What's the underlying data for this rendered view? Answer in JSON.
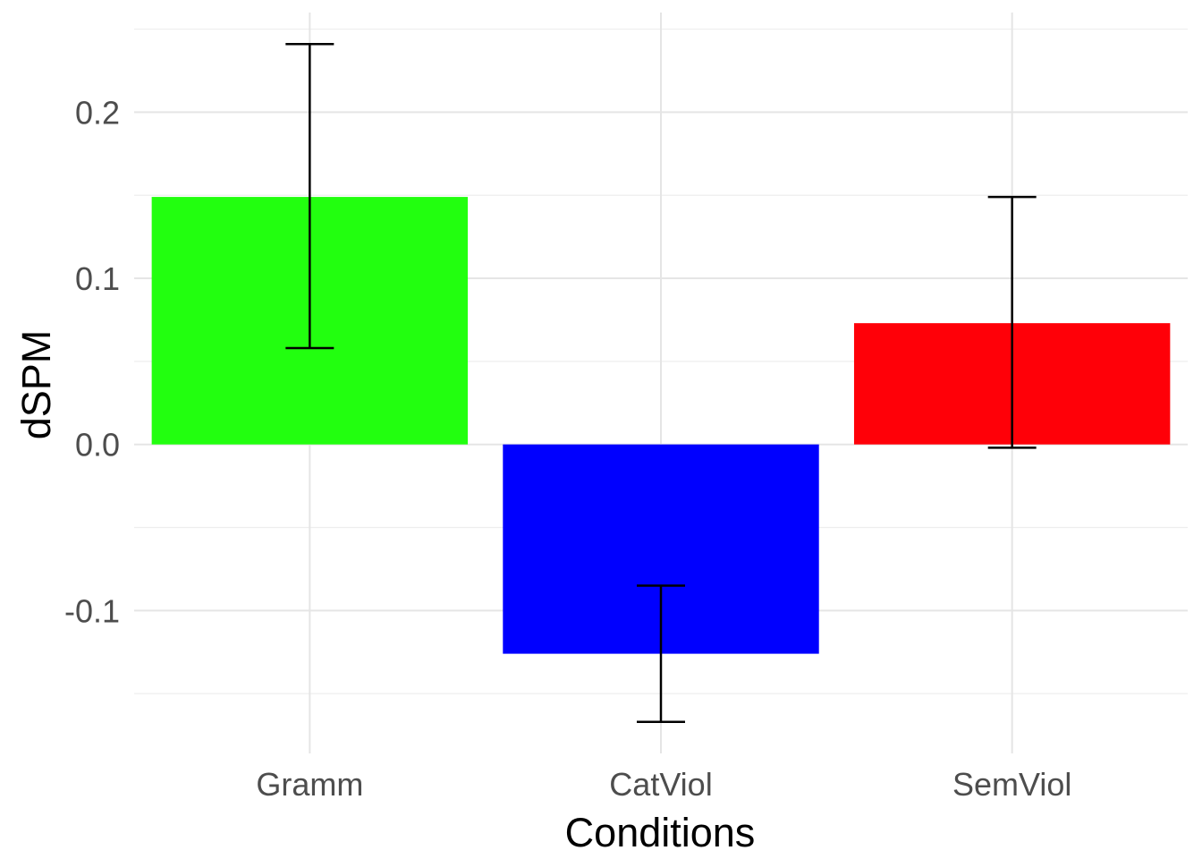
{
  "chart_data": {
    "type": "bar",
    "categories": [
      "Gramm",
      "CatViol",
      "SemViol"
    ],
    "values": [
      0.149,
      -0.126,
      0.073
    ],
    "error_low": [
      0.058,
      -0.167,
      -0.002
    ],
    "error_high": [
      0.241,
      -0.085,
      0.149
    ],
    "colors": [
      "#22ff0f",
      "#0000ff",
      "#ff0008"
    ],
    "xlabel": "Conditions",
    "ylabel": "dSPM",
    "ylim": [
      -0.186,
      0.26
    ],
    "yticks": [
      -0.1,
      0.0,
      0.1,
      0.2
    ],
    "ytick_labels": [
      "-0.1",
      "0.0",
      "0.1",
      "0.2"
    ],
    "grid": true,
    "legend": "none"
  }
}
